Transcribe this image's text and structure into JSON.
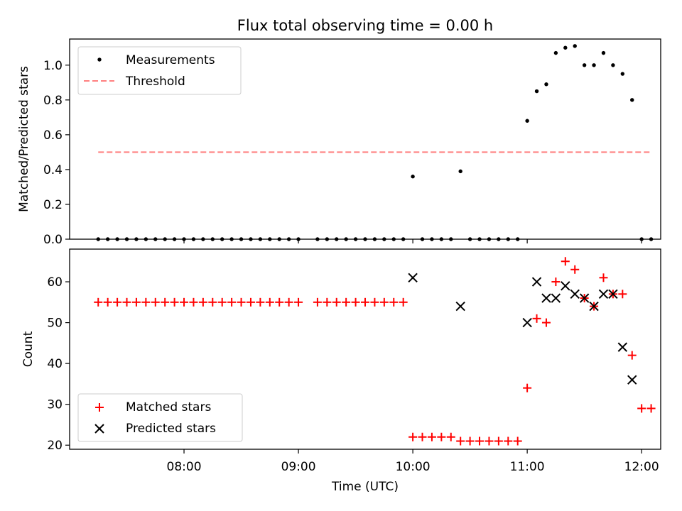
{
  "title": "Flux total observing time = 0.00 h",
  "chart_data": [
    {
      "type": "scatter",
      "title": "Flux total observing time = 0.00 h",
      "xlabel": "",
      "ylabel": "Matched/Predicted stars",
      "xlim": [
        "07:00",
        "12:10"
      ],
      "ylim": [
        0,
        1.15
      ],
      "yticks": [
        "0.0",
        "0.2",
        "0.4",
        "0.6",
        "0.8",
        "1.0"
      ],
      "ytick_values": [
        0,
        0.2,
        0.4,
        0.6,
        0.8,
        1.0
      ],
      "grid": false,
      "legend": "upper-left",
      "series": [
        {
          "name": "Measurements",
          "marker": "dot",
          "color": "#000000",
          "x": [
            "07:15",
            "07:20",
            "07:25",
            "07:30",
            "07:35",
            "07:40",
            "07:45",
            "07:50",
            "07:55",
            "08:00",
            "08:05",
            "08:10",
            "08:15",
            "08:20",
            "08:25",
            "08:30",
            "08:35",
            "08:40",
            "08:45",
            "08:50",
            "08:55",
            "09:00",
            "09:10",
            "09:15",
            "09:20",
            "09:25",
            "09:30",
            "09:35",
            "09:40",
            "09:45",
            "09:50",
            "09:55",
            "10:00",
            "10:05",
            "10:10",
            "10:15",
            "10:20",
            "10:25",
            "10:30",
            "10:35",
            "10:40",
            "10:45",
            "10:50",
            "10:55",
            "11:00",
            "11:05",
            "11:10",
            "11:15",
            "11:20",
            "11:25",
            "11:30",
            "11:35",
            "11:40",
            "11:45",
            "11:50",
            "11:55",
            "12:00",
            "12:05"
          ],
          "y": [
            0,
            0,
            0,
            0,
            0,
            0,
            0,
            0,
            0,
            0,
            0,
            0,
            0,
            0,
            0,
            0,
            0,
            0,
            0,
            0,
            0,
            0,
            0,
            0,
            0,
            0,
            0,
            0,
            0,
            0,
            0,
            0,
            0.36,
            0,
            0,
            0,
            0,
            0.39,
            0,
            0,
            0,
            0,
            0,
            0,
            0.68,
            0.85,
            0.89,
            1.07,
            1.1,
            1.11,
            1.0,
            1.0,
            1.07,
            1.0,
            0.95,
            0.8,
            0,
            0
          ]
        },
        {
          "name": "Threshold",
          "style": "dashed-line",
          "color": "#ff7f7f",
          "x": [
            "07:15",
            "12:05"
          ],
          "y": [
            0.5,
            0.5
          ]
        }
      ]
    },
    {
      "type": "scatter",
      "title": "",
      "xlabel": "Time (UTC)",
      "ylabel": "Count",
      "xlim": [
        "07:00",
        "12:10"
      ],
      "xticks": [
        "08:00",
        "09:00",
        "10:00",
        "11:00",
        "12:00"
      ],
      "ylim": [
        19,
        68
      ],
      "yticks": [
        "20",
        "30",
        "40",
        "50",
        "60"
      ],
      "ytick_values": [
        20,
        30,
        40,
        50,
        60
      ],
      "grid": false,
      "legend": "lower-left",
      "series": [
        {
          "name": "Matched stars",
          "marker": "plus",
          "color": "#ff0000",
          "x": [
            "07:15",
            "07:20",
            "07:25",
            "07:30",
            "07:35",
            "07:40",
            "07:45",
            "07:50",
            "07:55",
            "08:00",
            "08:05",
            "08:10",
            "08:15",
            "08:20",
            "08:25",
            "08:30",
            "08:35",
            "08:40",
            "08:45",
            "08:50",
            "08:55",
            "09:00",
            "09:10",
            "09:15",
            "09:20",
            "09:25",
            "09:30",
            "09:35",
            "09:40",
            "09:45",
            "09:50",
            "09:55",
            "10:00",
            "10:05",
            "10:10",
            "10:15",
            "10:20",
            "10:25",
            "10:30",
            "10:35",
            "10:40",
            "10:45",
            "10:50",
            "10:55",
            "11:00",
            "11:05",
            "11:10",
            "11:15",
            "11:20",
            "11:25",
            "11:30",
            "11:35",
            "11:40",
            "11:45",
            "11:50",
            "11:55",
            "12:00",
            "12:05"
          ],
          "y": [
            55,
            55,
            55,
            55,
            55,
            55,
            55,
            55,
            55,
            55,
            55,
            55,
            55,
            55,
            55,
            55,
            55,
            55,
            55,
            55,
            55,
            55,
            55,
            55,
            55,
            55,
            55,
            55,
            55,
            55,
            55,
            55,
            22,
            22,
            22,
            22,
            22,
            21,
            21,
            21,
            21,
            21,
            21,
            21,
            34,
            51,
            50,
            60,
            65,
            63,
            56,
            54,
            61,
            57,
            57,
            42,
            29,
            29
          ]
        },
        {
          "name": "Predicted stars",
          "marker": "x",
          "color": "#000000",
          "x": [
            "10:00",
            "10:25",
            "11:00",
            "11:05",
            "11:10",
            "11:15",
            "11:20",
            "11:25",
            "11:30",
            "11:35",
            "11:40",
            "11:45",
            "11:50",
            "11:55"
          ],
          "y": [
            61,
            54,
            50,
            60,
            56,
            56,
            59,
            57,
            56,
            54,
            57,
            57,
            44,
            36
          ]
        }
      ]
    }
  ]
}
